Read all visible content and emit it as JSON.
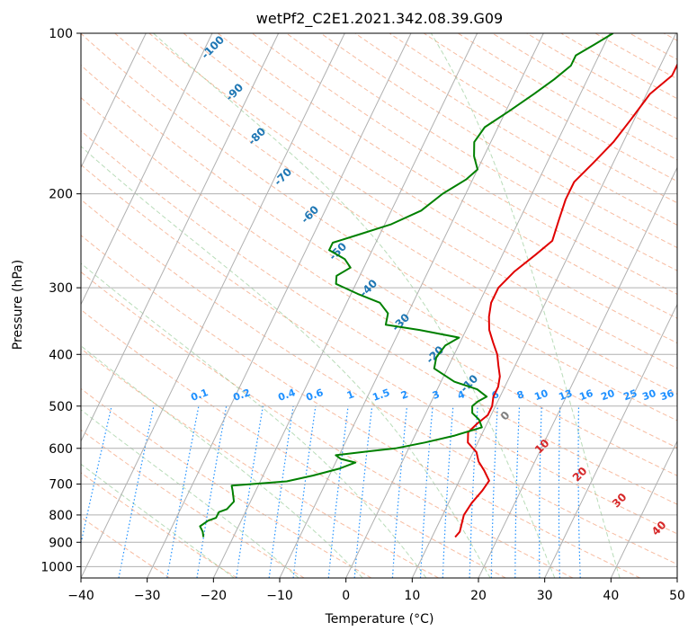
{
  "chart_data": {
    "type": "line",
    "title": "wetPf2_C2E1.2021.342.08.39.G09",
    "xlabel": "Temperature (°C)",
    "ylabel": "Pressure (hPa)",
    "xlim": [
      -40,
      50
    ],
    "ylim": [
      1050,
      100
    ],
    "y_scale": "log",
    "grid": true,
    "x_ticks": [
      "−40",
      "−30",
      "−20",
      "−10",
      "0",
      "10",
      "20",
      "30",
      "40",
      "50"
    ],
    "y_ticks": [
      "100",
      "200",
      "300",
      "400",
      "500",
      "600",
      "700",
      "800",
      "900",
      "1000"
    ],
    "skew_lines": [
      "-100",
      "-90",
      "-80",
      "-70",
      "-60",
      "-50",
      "-40",
      "-30",
      "-20",
      "-10"
    ],
    "mixing_ratio": [
      "0.1",
      "0.2",
      "0.4",
      "0.6",
      "1",
      "1.5",
      "2",
      "3",
      "4",
      "6",
      "8",
      "10",
      "13",
      "16",
      "20",
      "25",
      "30",
      "36"
    ],
    "moist_adiabats": [
      "0",
      "10",
      "20",
      "30",
      "40"
    ],
    "colors": {
      "temperature": "#e00000",
      "dewpoint": "#008000",
      "isotherm_label": "#1f77b4",
      "mixing_ratio": "#1e90ff",
      "moist_label": "#d62728",
      "moist_zero_label": "#808080"
    },
    "series": [
      {
        "points": [
          [
            13.5,
            880
          ],
          [
            13.8,
            860
          ],
          [
            13.2,
            800
          ],
          [
            13.5,
            760
          ],
          [
            14.2,
            720
          ],
          [
            14.5,
            690
          ],
          [
            13.0,
            660
          ],
          [
            11.5,
            635
          ],
          [
            10.5,
            610
          ],
          [
            8.5,
            585
          ],
          [
            7.8,
            560
          ],
          [
            8.5,
            540
          ],
          [
            9.5,
            520
          ],
          [
            9.5,
            500
          ],
          [
            9.0,
            480
          ],
          [
            9.0,
            460
          ],
          [
            8.5,
            440
          ],
          [
            7.5,
            420
          ],
          [
            6.5,
            400
          ],
          [
            5.0,
            380
          ],
          [
            3.5,
            360
          ],
          [
            2.5,
            340
          ],
          [
            1.8,
            320
          ],
          [
            1.8,
            300
          ],
          [
            3.0,
            280
          ],
          [
            5.0,
            260
          ],
          [
            6.5,
            245
          ],
          [
            6.0,
            225
          ],
          [
            5.5,
            205
          ],
          [
            5.5,
            190
          ],
          [
            7.0,
            175
          ],
          [
            8.5,
            160
          ],
          [
            9.5,
            145
          ],
          [
            10.5,
            130
          ],
          [
            12.5,
            120
          ],
          [
            12.5,
            112
          ],
          [
            12.0,
            105
          ],
          [
            11.8,
            100
          ]
        ]
      },
      {
        "points": [
          [
            -24.5,
            880
          ],
          [
            -25.0,
            860
          ],
          [
            -25.8,
            840
          ],
          [
            -25.0,
            820
          ],
          [
            -24.0,
            810
          ],
          [
            -24.0,
            790
          ],
          [
            -23.0,
            780
          ],
          [
            -22.5,
            755
          ],
          [
            -23.5,
            720
          ],
          [
            -24.0,
            705
          ],
          [
            -21.0,
            700
          ],
          [
            -16.0,
            692
          ],
          [
            -12.5,
            675
          ],
          [
            -9.0,
            655
          ],
          [
            -7.0,
            638
          ],
          [
            -9.5,
            628
          ],
          [
            -10.5,
            618
          ],
          [
            -6.0,
            608
          ],
          [
            -2.0,
            600
          ],
          [
            2.0,
            585
          ],
          [
            6.0,
            568
          ],
          [
            9.5,
            548
          ],
          [
            8.5,
            530
          ],
          [
            7.0,
            515
          ],
          [
            6.5,
            500
          ],
          [
            7.0,
            490
          ],
          [
            8.0,
            480
          ],
          [
            6.0,
            465
          ],
          [
            2.0,
            450
          ],
          [
            -2.0,
            425
          ],
          [
            -2.5,
            405
          ],
          [
            -2.0,
            385
          ],
          [
            -0.5,
            372
          ],
          [
            -7.0,
            360
          ],
          [
            -12.5,
            352
          ],
          [
            -13.0,
            335
          ],
          [
            -15.0,
            320
          ],
          [
            -19.0,
            308
          ],
          [
            -23.0,
            295
          ],
          [
            -23.5,
            285
          ],
          [
            -22.0,
            275
          ],
          [
            -23.5,
            265
          ],
          [
            -26.5,
            255
          ],
          [
            -26.5,
            247
          ],
          [
            -23.0,
            238
          ],
          [
            -19.0,
            228
          ],
          [
            -15.5,
            215
          ],
          [
            -13.5,
            200
          ],
          [
            -11.0,
            188
          ],
          [
            -10.0,
            180
          ],
          [
            -11.5,
            170
          ],
          [
            -12.5,
            160
          ],
          [
            -12.0,
            150
          ],
          [
            -9.5,
            140
          ],
          [
            -7.0,
            130
          ],
          [
            -5.0,
            122
          ],
          [
            -3.5,
            115
          ],
          [
            -3.5,
            110
          ],
          [
            -1.5,
            105
          ],
          [
            0.5,
            100
          ]
        ]
      }
    ]
  }
}
